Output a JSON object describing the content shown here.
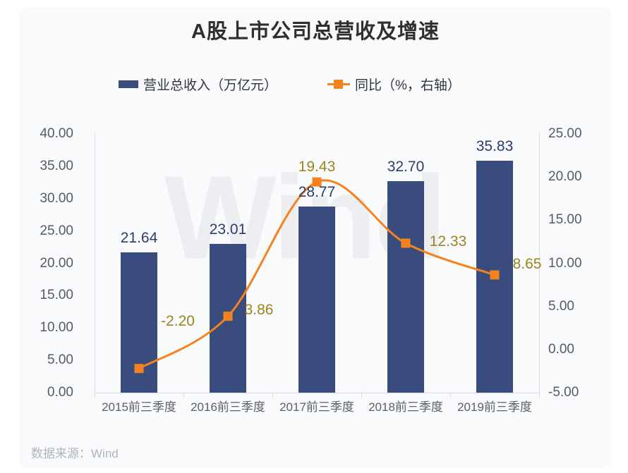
{
  "chart": {
    "title": "A股上市公司总营收及增速",
    "watermark": "Wind",
    "source": "数据来源：Wind",
    "legend": [
      {
        "label": "营业总收入（万亿元）",
        "type": "bar",
        "color": "#3a4b7e"
      },
      {
        "label": "同比（%，右轴）",
        "type": "line",
        "color": "#f5831d"
      }
    ]
  },
  "chart_data": {
    "type": "combo_bar_line",
    "title": "A股上市公司总营收及增速",
    "categories": [
      "2015前三季度",
      "2016前三季度",
      "2017前三季度",
      "2018前三季度",
      "2019前三季度"
    ],
    "series": [
      {
        "name": "营业总收入（万亿元）",
        "type": "bar",
        "axis": "left",
        "color": "#3a4b7e",
        "label_color": "#2b3d6f",
        "values": [
          21.64,
          23.01,
          28.77,
          32.7,
          35.83
        ]
      },
      {
        "name": "同比（%，右轴）",
        "type": "line",
        "axis": "right",
        "color": "#f5831d",
        "label_color": "#9c851c",
        "values": [
          -2.2,
          3.86,
          19.43,
          12.33,
          8.65
        ]
      }
    ],
    "left_axis": {
      "min": 0,
      "max": 40,
      "step": 5,
      "ticks": [
        "40.00",
        "35.00",
        "30.00",
        "25.00",
        "20.00",
        "15.00",
        "10.00",
        "5.00",
        "0.00"
      ]
    },
    "right_axis": {
      "min": -5,
      "max": 25,
      "step": 5,
      "ticks": [
        "25.00",
        "20.00",
        "15.00",
        "10.00",
        "5.00",
        "0.00",
        "-5.00"
      ]
    },
    "grid": false,
    "legend_position": "top",
    "smooth_line": true
  },
  "colors": {
    "card_background": "#f9fafc",
    "page_background": "#ffffff",
    "axis_line": "#d9dce2",
    "axis_text": "#565b63",
    "title_text": "#2f2f2f",
    "watermark_text": "#eceef1",
    "footer_text": "#afb3bc"
  }
}
